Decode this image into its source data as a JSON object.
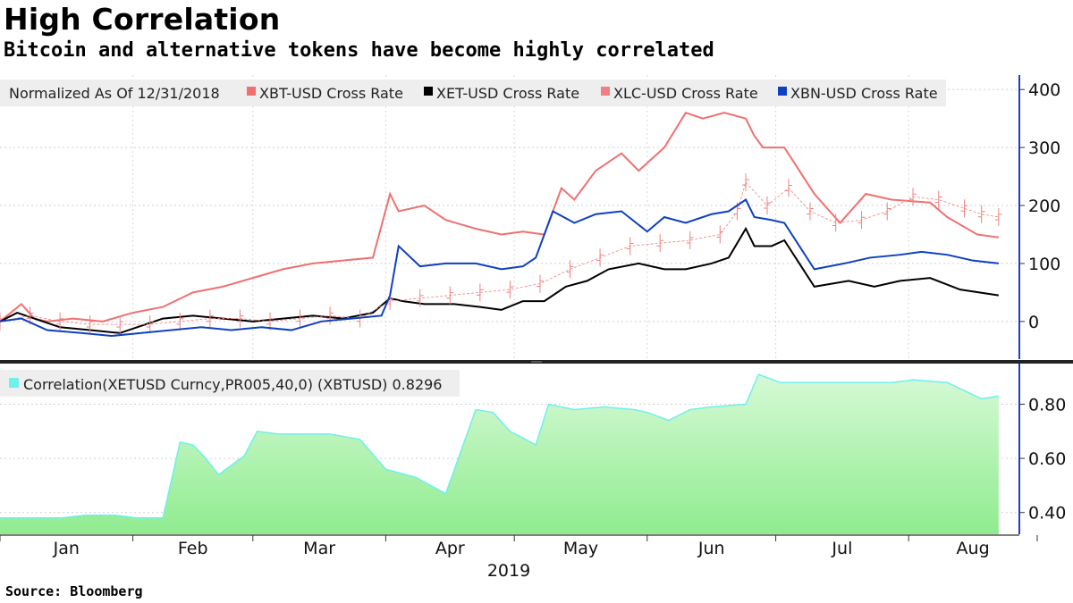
{
  "title": "High Correlation",
  "subtitle": "Bitcoin and alternative tokens have become highly correlated",
  "source": "Source: Bloomberg",
  "colors": {
    "xbt": "#f07070",
    "xet": "#000000",
    "xlc": "#f08080",
    "xbn": "#1040c0",
    "corr_fill": "#b8f7b8",
    "corr_line": "#6ef0ee",
    "axis": "#1f3fbf"
  },
  "chart_data": [
    {
      "type": "line",
      "panel": "top",
      "legend_title": "Normalized As Of 12/31/2018",
      "legend_placement": "top-left",
      "grid": true,
      "ylim": [
        -65,
        425
      ],
      "yticks": [
        0,
        100,
        200,
        300,
        400
      ],
      "ytick_labels": [
        "0",
        "100",
        "200",
        "300",
        "400"
      ],
      "xlim": [
        "2019-01-01",
        "2019-08-31"
      ],
      "series": [
        {
          "name": "XBT-USD Cross Rate",
          "color": "#f07070",
          "style": "line",
          "x": [
            "2019-01-01",
            "2019-01-06",
            "2019-01-09",
            "2019-01-12",
            "2019-01-18",
            "2019-01-25",
            "2019-02-01",
            "2019-02-08",
            "2019-02-15",
            "2019-02-22",
            "2019-03-01",
            "2019-03-08",
            "2019-03-15",
            "2019-03-22",
            "2019-03-29",
            "2019-04-02",
            "2019-04-04",
            "2019-04-10",
            "2019-04-15",
            "2019-04-22",
            "2019-04-28",
            "2019-05-03",
            "2019-05-08",
            "2019-05-12",
            "2019-05-15",
            "2019-05-20",
            "2019-05-26",
            "2019-05-30",
            "2019-06-05",
            "2019-06-10",
            "2019-06-14",
            "2019-06-19",
            "2019-06-24",
            "2019-06-26",
            "2019-06-28",
            "2019-07-03",
            "2019-07-10",
            "2019-07-16",
            "2019-07-22",
            "2019-07-28",
            "2019-08-06",
            "2019-08-10",
            "2019-08-17",
            "2019-08-22"
          ],
          "y": [
            0,
            30,
            5,
            0,
            5,
            0,
            15,
            25,
            50,
            60,
            75,
            90,
            100,
            105,
            110,
            220,
            190,
            200,
            175,
            160,
            150,
            155,
            150,
            230,
            210,
            260,
            290,
            260,
            300,
            360,
            350,
            360,
            350,
            320,
            300,
            300,
            220,
            170,
            220,
            210,
            205,
            180,
            150,
            145
          ]
        },
        {
          "name": "XET-USD Cross Rate",
          "color": "#000000",
          "style": "line",
          "x": [
            "2019-01-01",
            "2019-01-05",
            "2019-01-09",
            "2019-01-15",
            "2019-01-22",
            "2019-01-29",
            "2019-02-04",
            "2019-02-08",
            "2019-02-15",
            "2019-02-22",
            "2019-03-01",
            "2019-03-08",
            "2019-03-15",
            "2019-03-22",
            "2019-03-29",
            "2019-04-02",
            "2019-04-05",
            "2019-04-10",
            "2019-04-17",
            "2019-04-23",
            "2019-04-28",
            "2019-05-03",
            "2019-05-08",
            "2019-05-13",
            "2019-05-18",
            "2019-05-23",
            "2019-05-30",
            "2019-06-05",
            "2019-06-10",
            "2019-06-16",
            "2019-06-20",
            "2019-06-24",
            "2019-06-26",
            "2019-06-30",
            "2019-07-03",
            "2019-07-10",
            "2019-07-18",
            "2019-07-24",
            "2019-07-30",
            "2019-08-06",
            "2019-08-13",
            "2019-08-22"
          ],
          "y": [
            0,
            15,
            5,
            -10,
            -15,
            -20,
            -5,
            5,
            10,
            5,
            0,
            5,
            10,
            5,
            15,
            40,
            35,
            30,
            30,
            25,
            20,
            35,
            35,
            60,
            70,
            90,
            100,
            90,
            90,
            100,
            110,
            160,
            130,
            130,
            140,
            60,
            70,
            60,
            70,
            75,
            55,
            45
          ]
        },
        {
          "name": "XLC-USD Cross Rate",
          "color": "#f08080",
          "style": "bars",
          "x": [
            "2019-01-01",
            "2019-01-08",
            "2019-01-15",
            "2019-01-22",
            "2019-01-29",
            "2019-02-05",
            "2019-02-12",
            "2019-02-19",
            "2019-02-26",
            "2019-03-05",
            "2019-03-12",
            "2019-03-19",
            "2019-03-26",
            "2019-04-02",
            "2019-04-09",
            "2019-04-16",
            "2019-04-23",
            "2019-04-30",
            "2019-05-07",
            "2019-05-14",
            "2019-05-21",
            "2019-05-28",
            "2019-06-04",
            "2019-06-11",
            "2019-06-18",
            "2019-06-22",
            "2019-06-24",
            "2019-06-29",
            "2019-07-04",
            "2019-07-09",
            "2019-07-15",
            "2019-07-21",
            "2019-07-27",
            "2019-08-02",
            "2019-08-08",
            "2019-08-14",
            "2019-08-18",
            "2019-08-22"
          ],
          "y": [
            0,
            10,
            0,
            -5,
            -5,
            -5,
            0,
            5,
            5,
            0,
            5,
            10,
            5,
            35,
            40,
            45,
            50,
            55,
            65,
            90,
            110,
            130,
            135,
            140,
            150,
            190,
            240,
            200,
            230,
            190,
            170,
            175,
            190,
            215,
            210,
            195,
            185,
            180
          ]
        },
        {
          "name": "XBN-USD Cross Rate",
          "color": "#1040c0",
          "style": "line",
          "x": [
            "2019-01-01",
            "2019-01-06",
            "2019-01-12",
            "2019-01-20",
            "2019-01-27",
            "2019-02-03",
            "2019-02-10",
            "2019-02-17",
            "2019-02-24",
            "2019-03-03",
            "2019-03-10",
            "2019-03-17",
            "2019-03-24",
            "2019-03-31",
            "2019-04-02",
            "2019-04-04",
            "2019-04-09",
            "2019-04-15",
            "2019-04-22",
            "2019-04-28",
            "2019-05-03",
            "2019-05-06",
            "2019-05-10",
            "2019-05-15",
            "2019-05-20",
            "2019-05-26",
            "2019-06-01",
            "2019-06-05",
            "2019-06-10",
            "2019-06-16",
            "2019-06-20",
            "2019-06-24",
            "2019-06-26",
            "2019-06-30",
            "2019-07-03",
            "2019-07-10",
            "2019-07-17",
            "2019-07-23",
            "2019-07-30",
            "2019-08-04",
            "2019-08-10",
            "2019-08-16",
            "2019-08-22"
          ],
          "y": [
            0,
            5,
            -15,
            -20,
            -25,
            -20,
            -15,
            -10,
            -15,
            -10,
            -15,
            0,
            5,
            10,
            45,
            130,
            95,
            100,
            100,
            90,
            95,
            110,
            190,
            170,
            185,
            190,
            155,
            180,
            170,
            185,
            190,
            210,
            180,
            175,
            170,
            90,
            100,
            110,
            115,
            120,
            115,
            105,
            100
          ]
        }
      ]
    },
    {
      "type": "area",
      "panel": "bottom",
      "legend_title": "Correlation(XETUSD Curncy,PR005,40,0) (XBTUSD) 0.8296",
      "legend_placement": "top-left",
      "ylim": [
        0.32,
        0.95
      ],
      "yticks": [
        0.4,
        0.6,
        0.8
      ],
      "ytick_labels": [
        "0.40",
        "0.60",
        "0.80"
      ],
      "xlim": [
        "2019-01-01",
        "2019-08-31"
      ],
      "categories": [
        "Jan",
        "Feb",
        "Mar",
        "Apr",
        "May",
        "Jun",
        "Jul",
        "Aug"
      ],
      "xlabel": "2019",
      "series": [
        {
          "name": "Correlation(XETUSD Curncy,PR005,40,0) (XBTUSD)",
          "color": "#6ef0ee",
          "last_value": 0.8296,
          "x": [
            "2019-01-01",
            "2019-01-15",
            "2019-01-21",
            "2019-01-28",
            "2019-02-02",
            "2019-02-08",
            "2019-02-12",
            "2019-02-15",
            "2019-02-18",
            "2019-02-21",
            "2019-02-27",
            "2019-03-02",
            "2019-03-07",
            "2019-03-12",
            "2019-03-19",
            "2019-03-26",
            "2019-04-01",
            "2019-04-08",
            "2019-04-15",
            "2019-04-22",
            "2019-04-26",
            "2019-04-30",
            "2019-05-06",
            "2019-05-09",
            "2019-05-15",
            "2019-05-22",
            "2019-05-29",
            "2019-06-01",
            "2019-06-06",
            "2019-06-11",
            "2019-06-16",
            "2019-06-24",
            "2019-06-27",
            "2019-07-02",
            "2019-07-09",
            "2019-07-16",
            "2019-07-22",
            "2019-07-28",
            "2019-08-02",
            "2019-08-10",
            "2019-08-18",
            "2019-08-22"
          ],
          "y": [
            0.38,
            0.38,
            0.39,
            0.39,
            0.38,
            0.38,
            0.66,
            0.65,
            0.6,
            0.54,
            0.61,
            0.7,
            0.69,
            0.69,
            0.69,
            0.67,
            0.56,
            0.53,
            0.47,
            0.78,
            0.77,
            0.7,
            0.65,
            0.8,
            0.78,
            0.79,
            0.78,
            0.77,
            0.74,
            0.78,
            0.79,
            0.8,
            0.91,
            0.88,
            0.88,
            0.88,
            0.88,
            0.88,
            0.89,
            0.88,
            0.82,
            0.83
          ]
        }
      ]
    }
  ]
}
